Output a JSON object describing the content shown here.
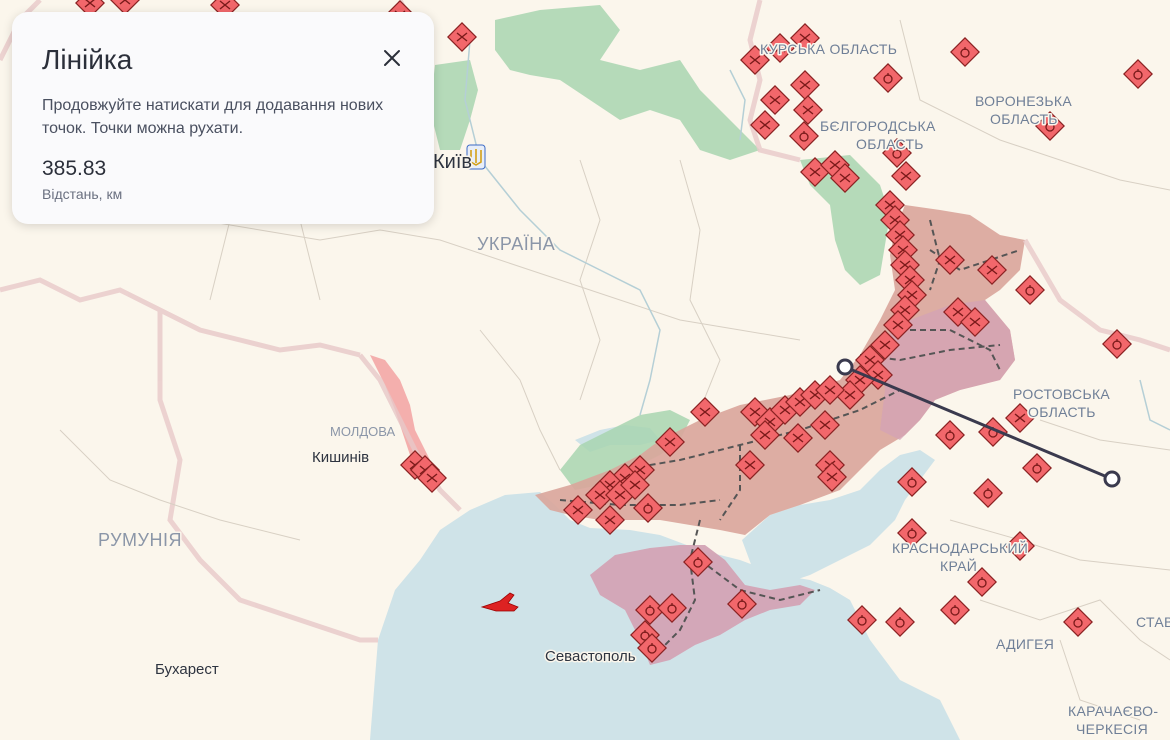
{
  "ruler_panel": {
    "title": "Лінійка",
    "description": "Продовжуйте натискати для додавання нових точок. Точки можна рухати.",
    "distance_value": "385.83",
    "distance_unit": "Відстань, км"
  },
  "labels": {
    "ukraine": "УКРАЇНА",
    "kyiv": "Київ",
    "moldova": "МОЛДОВА",
    "chisinau": "Кишинів",
    "romania": "РУМУНІЯ",
    "bucharest": "Бухарест",
    "sevastopol": "Севастополь",
    "kursk": "КУРСЬКА ОБЛАСТЬ",
    "belgorod_1": "БЄЛГОРОДСЬКА",
    "belgorod_2": "ОБЛАСТЬ",
    "voronezh_1": "ВОРОНЕЗЬКА",
    "voronezh_2": "ОБЛАСТЬ",
    "rostov_1": "РОСТОВСЬКА",
    "rostov_2": "ОБЛАСТЬ",
    "krasnodar_1": "КРАСНОДАРСЬКИЙ",
    "krasnodar_2": "КРАЙ",
    "adygea": "АДИГЕЯ",
    "karachay_1": "КАРАЧАЄВО-",
    "karachay_2": "ЧЕРКЕСІЯ",
    "stavropol": "СТАВ"
  },
  "colors": {
    "land": "#fbf6ec",
    "sea": "#cfe3e8",
    "occupied": "#d9a59b",
    "crimea": "#d3a3b5",
    "liberated": "#a8d5b0",
    "marker": "#f2676b",
    "ruler_line": "#3a3a4e"
  },
  "icons": {
    "close": "close-icon",
    "attack_marker": "explosion-marker-icon",
    "aircraft": "aircraft-icon"
  }
}
